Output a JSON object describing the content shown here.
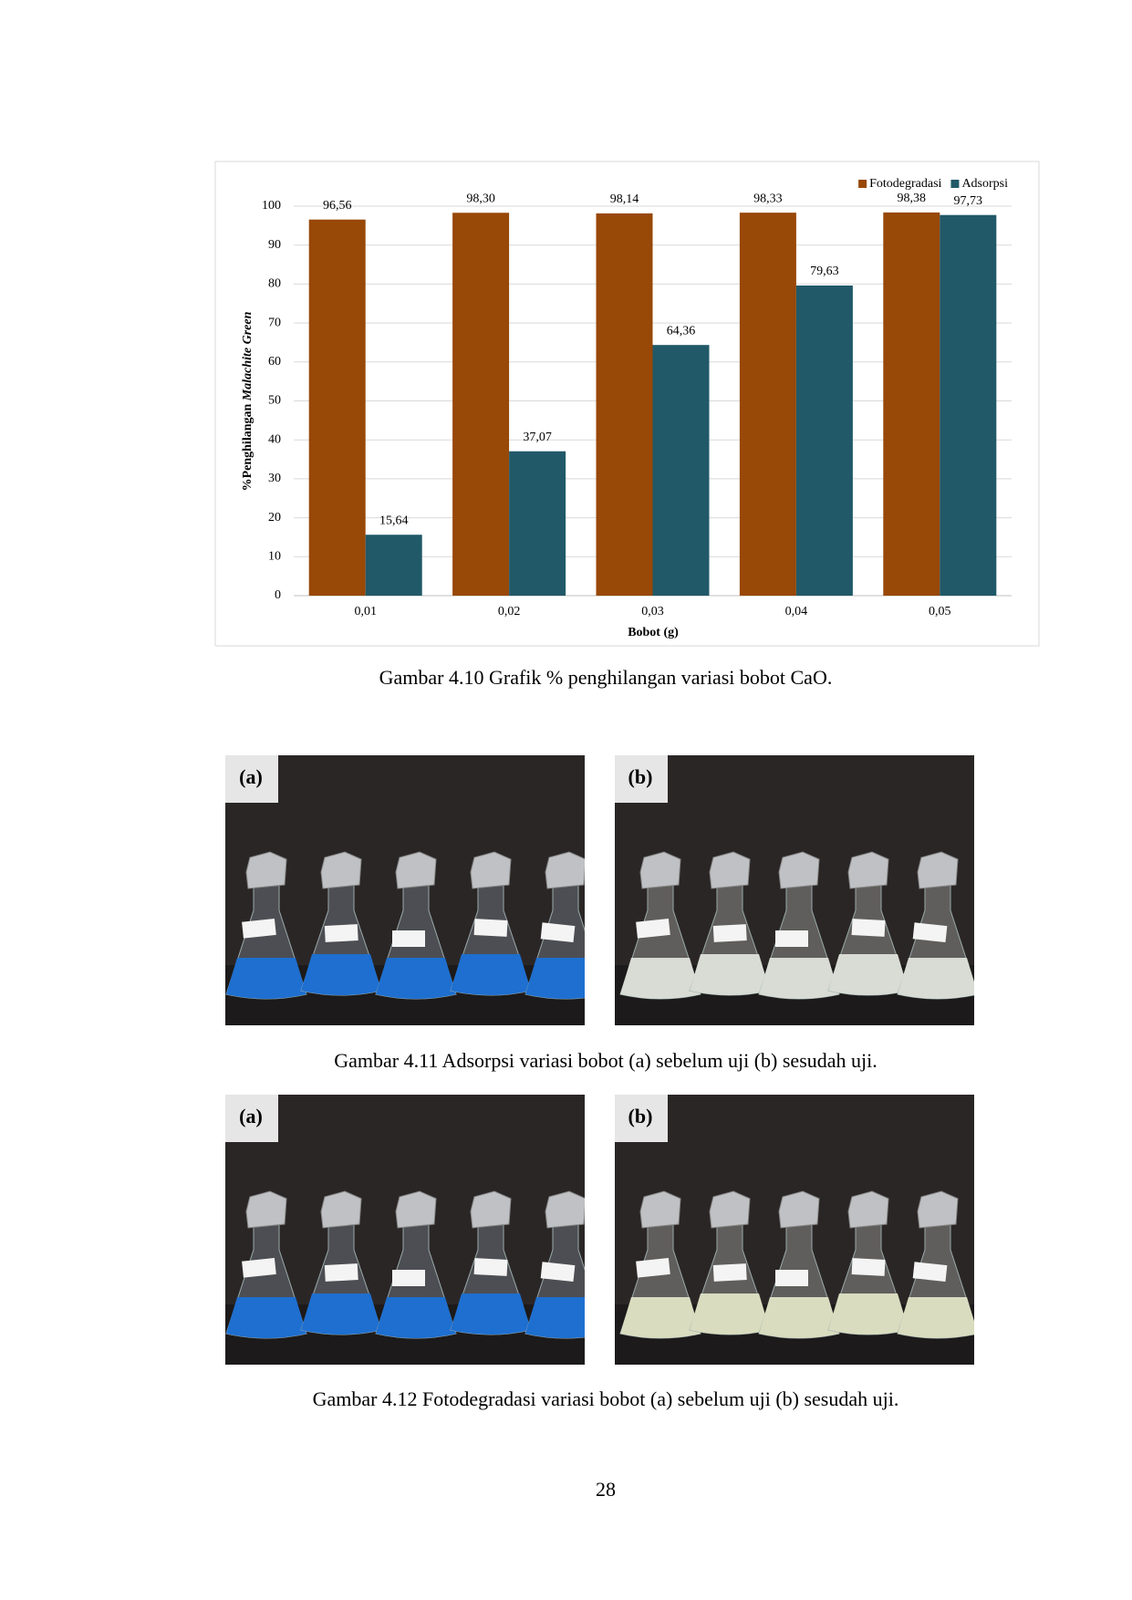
{
  "chart_data": {
    "type": "bar",
    "categories": [
      "0,01",
      "0,02",
      "0,03",
      "0,04",
      "0,05"
    ],
    "series": [
      {
        "name": "Fotodegradasi",
        "color": "#984807",
        "values": [
          96.56,
          98.3,
          98.14,
          98.33,
          98.38
        ],
        "value_labels": [
          "96,56",
          "98,30",
          "98,14",
          "98,33",
          "98,38"
        ]
      },
      {
        "name": "Adsorpsi",
        "color": "#215968",
        "values": [
          15.64,
          37.07,
          64.36,
          79.63,
          97.73
        ],
        "value_labels": [
          "15,64",
          "37,07",
          "64,36",
          "79,63",
          "97,73"
        ]
      }
    ],
    "ylabel": [
      "%Penghilangan ",
      "Malachite Green"
    ],
    "xlabel": "Bobot (g)",
    "ylim": [
      0,
      100
    ],
    "yticks": [
      0,
      10,
      20,
      30,
      40,
      50,
      60,
      70,
      80,
      90,
      100
    ],
    "grid": true,
    "legend": "top-right"
  },
  "captions": [
    "Gambar 4.10 Grafik % penghilangan variasi bobot CaO.",
    "Gambar 4.11 Adsorpsi variasi bobot (a) sebelum uji (b) sesudah uji.",
    "Gambar 4.12  Fotodegradasi variasi bobot (a) sebelum uji (b) sesudah uji."
  ],
  "figures": [
    {
      "panels": [
        "(a)",
        "(b)"
      ]
    },
    {
      "panels": [
        "(a)",
        "(b)"
      ]
    }
  ],
  "page_number": "28"
}
